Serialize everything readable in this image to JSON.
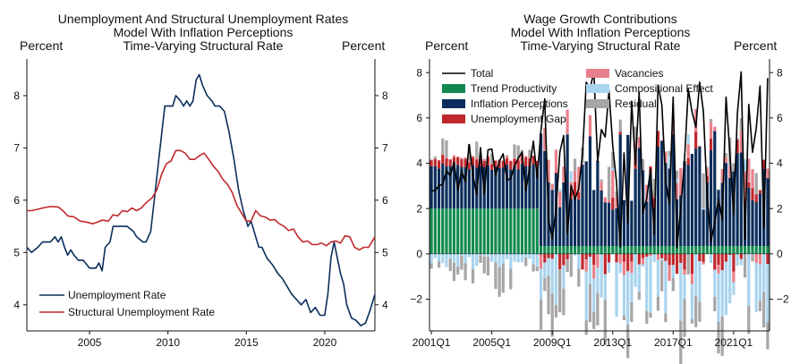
{
  "chart_data": [
    {
      "type": "line",
      "title": [
        "Unemployment And Structural Unemployment Rates",
        "Model With Inflation Perceptions",
        "Time-Varying Structural Rate"
      ],
      "ylabel_left": "Percent",
      "ylabel_right": "Percent",
      "xlim": [
        2001,
        2023.2
      ],
      "ylim": [
        3.5,
        8.7
      ],
      "xticks": [
        2005,
        2010,
        2015,
        2020
      ],
      "yticks": [
        4,
        5,
        6,
        7,
        8
      ],
      "series": [
        {
          "name": "Unemployment Rate",
          "color": "#0b2d5b",
          "points": [
            [
              2001,
              5.1
            ],
            [
              2001.3,
              5.0
            ],
            [
              2001.7,
              5.1
            ],
            [
              2002,
              5.2
            ],
            [
              2002.5,
              5.2
            ],
            [
              2002.8,
              5.3
            ],
            [
              2003,
              5.2
            ],
            [
              2003.2,
              5.3
            ],
            [
              2003.4,
              5.1
            ],
            [
              2003.6,
              4.95
            ],
            [
              2003.8,
              5.05
            ],
            [
              2004,
              4.95
            ],
            [
              2004.3,
              4.85
            ],
            [
              2004.6,
              4.85
            ],
            [
              2005,
              4.7
            ],
            [
              2005.4,
              4.7
            ],
            [
              2005.6,
              4.8
            ],
            [
              2005.8,
              4.65
            ],
            [
              2006,
              5.1
            ],
            [
              2006.3,
              5.2
            ],
            [
              2006.5,
              5.5
            ],
            [
              2007,
              5.5
            ],
            [
              2007.4,
              5.5
            ],
            [
              2007.8,
              5.4
            ],
            [
              2008,
              5.3
            ],
            [
              2008.4,
              5.2
            ],
            [
              2008.6,
              5.2
            ],
            [
              2008.9,
              5.4
            ],
            [
              2009.2,
              6.2
            ],
            [
              2009.5,
              7.0
            ],
            [
              2009.8,
              7.8
            ],
            [
              2010.1,
              7.8
            ],
            [
              2010.3,
              7.8
            ],
            [
              2010.5,
              8.0
            ],
            [
              2010.8,
              7.9
            ],
            [
              2011,
              7.8
            ],
            [
              2011.2,
              7.9
            ],
            [
              2011.4,
              7.8
            ],
            [
              2011.6,
              7.9
            ],
            [
              2011.8,
              8.3
            ],
            [
              2012,
              8.4
            ],
            [
              2012.2,
              8.2
            ],
            [
              2012.5,
              8.0
            ],
            [
              2012.8,
              7.9
            ],
            [
              2013,
              7.8
            ],
            [
              2013.3,
              7.8
            ],
            [
              2013.6,
              7.7
            ],
            [
              2013.9,
              7.3
            ],
            [
              2014.2,
              6.8
            ],
            [
              2014.5,
              6.2
            ],
            [
              2014.8,
              5.8
            ],
            [
              2015.1,
              5.5
            ],
            [
              2015.3,
              5.6
            ],
            [
              2015.6,
              5.3
            ],
            [
              2015.8,
              5.1
            ],
            [
              2016,
              5.1
            ],
            [
              2016.3,
              4.9
            ],
            [
              2016.7,
              4.75
            ],
            [
              2017,
              4.6
            ],
            [
              2017.3,
              4.5
            ],
            [
              2017.6,
              4.35
            ],
            [
              2017.9,
              4.2
            ],
            [
              2018.2,
              4.1
            ],
            [
              2018.5,
              4.0
            ],
            [
              2018.8,
              4.1
            ],
            [
              2019.1,
              3.85
            ],
            [
              2019.4,
              3.95
            ],
            [
              2019.7,
              3.8
            ],
            [
              2020.0,
              3.8
            ],
            [
              2020.2,
              4.2
            ],
            [
              2020.4,
              4.9
            ],
            [
              2020.6,
              5.2
            ],
            [
              2020.8,
              4.9
            ],
            [
              2021.0,
              4.6
            ],
            [
              2021.2,
              4.4
            ],
            [
              2021.4,
              4.0
            ],
            [
              2021.7,
              3.75
            ],
            [
              2022.0,
              3.7
            ],
            [
              2022.3,
              3.6
            ],
            [
              2022.6,
              3.65
            ],
            [
              2022.9,
              3.9
            ],
            [
              2023.2,
              4.2
            ]
          ]
        },
        {
          "name": "Structural Unemployment Rate",
          "color": "#c1272d",
          "points": [
            [
              2001,
              5.8
            ],
            [
              2001.3,
              5.8
            ],
            [
              2001.6,
              5.82
            ],
            [
              2002,
              5.85
            ],
            [
              2002.5,
              5.88
            ],
            [
              2003,
              5.87
            ],
            [
              2003.3,
              5.8
            ],
            [
              2003.6,
              5.7
            ],
            [
              2004,
              5.68
            ],
            [
              2004.4,
              5.6
            ],
            [
              2004.8,
              5.58
            ],
            [
              2005.2,
              5.55
            ],
            [
              2005.5,
              5.58
            ],
            [
              2005.8,
              5.62
            ],
            [
              2006.2,
              5.6
            ],
            [
              2006.5,
              5.72
            ],
            [
              2006.8,
              5.7
            ],
            [
              2007.1,
              5.8
            ],
            [
              2007.4,
              5.78
            ],
            [
              2007.7,
              5.85
            ],
            [
              2008,
              5.8
            ],
            [
              2008.3,
              5.85
            ],
            [
              2008.6,
              5.95
            ],
            [
              2009,
              6.05
            ],
            [
              2009.3,
              6.2
            ],
            [
              2009.6,
              6.5
            ],
            [
              2009.9,
              6.7
            ],
            [
              2010.2,
              6.75
            ],
            [
              2010.5,
              6.95
            ],
            [
              2010.8,
              6.95
            ],
            [
              2011.1,
              6.9
            ],
            [
              2011.4,
              6.78
            ],
            [
              2011.7,
              6.78
            ],
            [
              2012,
              6.85
            ],
            [
              2012.3,
              6.9
            ],
            [
              2012.6,
              6.78
            ],
            [
              2012.9,
              6.65
            ],
            [
              2013.2,
              6.55
            ],
            [
              2013.5,
              6.4
            ],
            [
              2013.8,
              6.3
            ],
            [
              2014.1,
              6.15
            ],
            [
              2014.4,
              5.9
            ],
            [
              2014.7,
              5.75
            ],
            [
              2015,
              5.6
            ],
            [
              2015.3,
              5.6
            ],
            [
              2015.6,
              5.8
            ],
            [
              2015.9,
              5.7
            ],
            [
              2016.2,
              5.68
            ],
            [
              2016.5,
              5.62
            ],
            [
              2016.8,
              5.63
            ],
            [
              2017.1,
              5.55
            ],
            [
              2017.4,
              5.5
            ],
            [
              2017.7,
              5.42
            ],
            [
              2018,
              5.45
            ],
            [
              2018.3,
              5.3
            ],
            [
              2018.6,
              5.2
            ],
            [
              2018.9,
              5.22
            ],
            [
              2019.2,
              5.15
            ],
            [
              2019.5,
              5.15
            ],
            [
              2019.8,
              5.18
            ],
            [
              2020.1,
              5.13
            ],
            [
              2020.4,
              5.2
            ],
            [
              2020.7,
              5.22
            ],
            [
              2021,
              5.18
            ],
            [
              2021.3,
              5.32
            ],
            [
              2021.6,
              5.3
            ],
            [
              2021.9,
              5.1
            ],
            [
              2022.2,
              5.05
            ],
            [
              2022.5,
              5.1
            ],
            [
              2022.8,
              5.1
            ],
            [
              2023.2,
              5.3
            ]
          ]
        }
      ],
      "legend": [
        "Unemployment Rate",
        "Structural Unemployment Rate"
      ],
      "legend_position": "bottom-left"
    },
    {
      "type": "bar",
      "title": [
        "Wage Growth Contributions",
        "Model With Inflation Perceptions",
        "Time-Varying Structural Rate"
      ],
      "ylabel_left": "Percent",
      "ylabel_right": "Percent",
      "ylim": [
        -3.4,
        8.6
      ],
      "yticks": [
        -2,
        0,
        2,
        4,
        6,
        8
      ],
      "xticks": [
        "2001Q1",
        "2005Q1",
        "2009Q1",
        "2013Q1",
        "2017Q1",
        "2021Q1"
      ],
      "stacked": true,
      "legend": [
        "Total",
        "Trend Productivity",
        "Inflation Perceptions",
        "Unemployment Gap",
        "Vacancies",
        "Compositional Effect",
        "Residual"
      ],
      "legend_position": "top-left",
      "series_colors": {
        "Trend Productivity": "#128a4f",
        "Inflation Perceptions": "#0b2d5b",
        "Unemployment Gap": "#c1272d",
        "Vacancies": "#e8808b",
        "Compositional Effect": "#a9d4ee",
        "Residual": "#a6a6a6",
        "Total": "#000000"
      },
      "start_quarter": "2001Q1",
      "quarters": 90,
      "phases": [
        {
          "from": 0,
          "to": 29,
          "Trend Productivity": 2.0,
          "Inflation Perceptions": [
            1.7,
            2.0
          ],
          "Unemployment Gap": [
            0.25,
            0.4
          ],
          "Vacancies": [
            0.0,
            0.1
          ],
          "Compositional Effect": [
            -0.7,
            -0.05
          ],
          "Residual": [
            -1.3,
            0.8
          ],
          "Total": [
            2.6,
            5.0
          ]
        },
        {
          "from": 29,
          "to": 90,
          "Trend Productivity": 0.35,
          "Inflation Perceptions": [
            1.6,
            5.1
          ],
          "Unemployment Gap": [
            -0.9,
            0.8
          ],
          "Vacancies": [
            -0.7,
            1.2
          ],
          "Compositional Effect": [
            -2.6,
            0.6
          ],
          "Residual": [
            -2.0,
            1.6
          ],
          "Total": [
            0.2,
            8.2
          ]
        }
      ]
    }
  ]
}
